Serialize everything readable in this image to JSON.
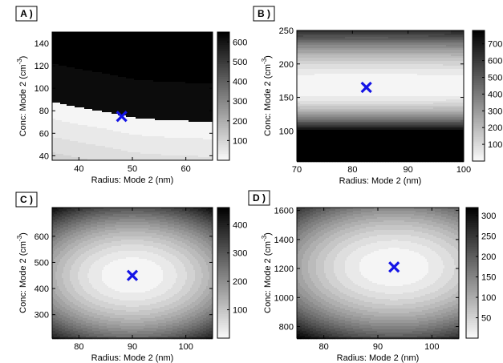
{
  "chart_data": [
    {
      "type": "heatmap",
      "panel_label": "A )",
      "xlabel": "Radius: Mode 2 (nm)",
      "ylabel_main": "Conc: Mode 2 (cm",
      "ylabel_sup": "-3",
      "ylabel_close": ")",
      "xlim": [
        35,
        65
      ],
      "ylim": [
        36,
        150
      ],
      "xticks": [
        "40",
        "50",
        "60"
      ],
      "xtick_values": [
        40,
        50,
        60
      ],
      "yticks": [
        "40",
        "60",
        "80",
        "100",
        "120",
        "140"
      ],
      "ytick_values": [
        40,
        60,
        80,
        100,
        120,
        140
      ],
      "colorbar_range": [
        0,
        650
      ],
      "colorbar_ticks": [
        "100",
        "200",
        "300",
        "400",
        "500",
        "600"
      ],
      "colorbar_tick_values": [
        100,
        200,
        300,
        400,
        500,
        600
      ],
      "colormap": "white-low-black-high",
      "pattern": "ridge",
      "ridge_curve": [
        [
          35,
          88
        ],
        [
          40,
          83
        ],
        [
          45,
          79
        ],
        [
          48,
          76
        ],
        [
          50,
          74
        ],
        [
          55,
          72
        ],
        [
          60,
          71
        ],
        [
          65,
          70
        ]
      ],
      "best_fit": {
        "x": 48,
        "y": 75,
        "marker": "x",
        "color": "#1414e6"
      }
    },
    {
      "type": "heatmap",
      "panel_label": "B )",
      "xlabel": "Radius: Mode 2 (nm)",
      "ylabel_main": "Conc: Mode 2 (cm",
      "ylabel_sup": "-3",
      "ylabel_close": ")",
      "xlim": [
        70,
        100
      ],
      "ylim": [
        55,
        250
      ],
      "xticks": [
        "70",
        "80",
        "90",
        "100"
      ],
      "xtick_values": [
        70,
        80,
        90,
        100
      ],
      "yticks": [
        "100",
        "150",
        "200",
        "250"
      ],
      "ytick_values": [
        100,
        150,
        200,
        250
      ],
      "colorbar_range": [
        0,
        780
      ],
      "colorbar_ticks": [
        "100",
        "200",
        "300",
        "400",
        "500",
        "600",
        "700"
      ],
      "colorbar_tick_values": [
        100,
        200,
        300,
        400,
        500,
        600,
        700
      ],
      "colormap": "white-low-black-high",
      "pattern": "horizontal-band",
      "band_center": 165,
      "best_fit": {
        "x": 82.5,
        "y": 165,
        "marker": "x",
        "color": "#1414e6"
      }
    },
    {
      "type": "heatmap",
      "panel_label": "C )",
      "xlabel": "Radius: Mode 2 (nm)",
      "ylabel_main": "Conc: Mode 2 (cm",
      "ylabel_sup": "-3",
      "ylabel_close": ")",
      "xlim": [
        75,
        105
      ],
      "ylim": [
        210,
        710
      ],
      "xticks": [
        "80",
        "90",
        "100"
      ],
      "xtick_values": [
        80,
        90,
        100
      ],
      "yticks": [
        "300",
        "400",
        "500",
        "600"
      ],
      "ytick_values": [
        300,
        400,
        500,
        600
      ],
      "colorbar_range": [
        0,
        460
      ],
      "colorbar_ticks": [
        "100",
        "200",
        "300",
        "400"
      ],
      "colorbar_tick_values": [
        100,
        200,
        300,
        400
      ],
      "colormap": "white-low-black-high",
      "pattern": "ellipse",
      "center": [
        90,
        450
      ],
      "scale": [
        6,
        70
      ],
      "rotation_deg": 0,
      "best_fit": {
        "x": 90,
        "y": 450,
        "marker": "x",
        "color": "#1414e6"
      }
    },
    {
      "type": "heatmap",
      "panel_label": "D )",
      "xlabel": "Radius: Mode 2 (nm)",
      "ylabel_main": "Conc: Mode 2 (cm",
      "ylabel_sup": "-3",
      "ylabel_close": ")",
      "xlim": [
        75,
        105
      ],
      "ylim": [
        720,
        1620
      ],
      "xticks": [
        "80",
        "90",
        "100"
      ],
      "xtick_values": [
        80,
        90,
        100
      ],
      "yticks": [
        "800",
        "1000",
        "1200",
        "1400",
        "1600"
      ],
      "ytick_values": [
        800,
        1000,
        1200,
        1400,
        1600
      ],
      "colorbar_range": [
        0,
        320
      ],
      "colorbar_ticks": [
        "50",
        "100",
        "150",
        "200",
        "250",
        "300"
      ],
      "colorbar_tick_values": [
        50,
        100,
        150,
        200,
        250,
        300
      ],
      "colormap": "white-low-black-high",
      "pattern": "ellipse",
      "center": [
        93,
        1210
      ],
      "scale": [
        8,
        160
      ],
      "rotation_deg": -40,
      "best_fit": {
        "x": 93,
        "y": 1210,
        "marker": "x",
        "color": "#1414e6"
      }
    }
  ]
}
